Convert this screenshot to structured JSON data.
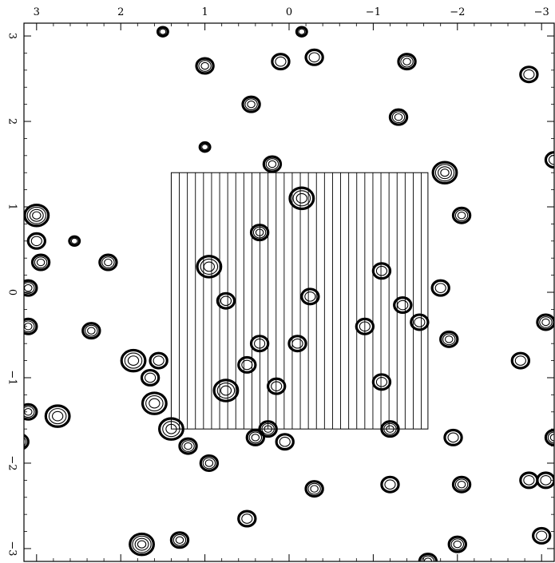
{
  "chart_data": {
    "type": "scatter",
    "title": "",
    "xlabel": "",
    "ylabel": "",
    "x_axis": {
      "reversed": true,
      "xlim": [
        3.15,
        -3.15
      ],
      "ticks": [
        3,
        2,
        1,
        0,
        -1,
        -2,
        -3
      ],
      "tick_labels": [
        "3",
        "2",
        "1",
        "0",
        "−1",
        "−2",
        "−3"
      ]
    },
    "y_axis": {
      "ylim": [
        -3.15,
        3.15
      ],
      "ticks": [
        3,
        2,
        1,
        0,
        -1,
        -2,
        -3
      ],
      "tick_labels": [
        "3",
        "2",
        "1",
        "0",
        "−1",
        "−2",
        "−3"
      ],
      "label_rotation": "90"
    },
    "grid": false,
    "legend": "none",
    "hatched_region": {
      "x": [
        1.4,
        -1.65
      ],
      "y": [
        1.4,
        -1.6
      ],
      "hatch": "vertical"
    },
    "line_color": "#000000",
    "sources": [
      [
        3.0,
        0.9,
        3,
        4
      ],
      [
        3.0,
        0.6,
        2,
        2
      ],
      [
        2.95,
        0.35,
        2,
        3
      ],
      [
        3.1,
        0.05,
        2,
        3
      ],
      [
        3.1,
        -0.4,
        2,
        3
      ],
      [
        3.1,
        -1.4,
        2,
        3
      ],
      [
        2.75,
        -1.45,
        3,
        3
      ],
      [
        3.2,
        -1.75,
        2,
        3
      ],
      [
        2.15,
        0.35,
        2,
        3
      ],
      [
        2.35,
        -0.45,
        2,
        3
      ],
      [
        1.85,
        -0.8,
        3,
        3
      ],
      [
        1.65,
        -1.0,
        2,
        2
      ],
      [
        1.6,
        -1.3,
        3,
        3
      ],
      [
        1.4,
        -1.6,
        3,
        3
      ],
      [
        1.2,
        -1.8,
        2,
        3
      ],
      [
        0.95,
        -2.0,
        2,
        3
      ],
      [
        1.55,
        -0.8,
        2,
        2
      ],
      [
        0.95,
        0.3,
        3,
        3
      ],
      [
        0.75,
        -0.1,
        2,
        2
      ],
      [
        0.75,
        -1.15,
        3,
        3
      ],
      [
        0.5,
        -0.85,
        2,
        2
      ],
      [
        0.4,
        -1.7,
        2,
        3
      ],
      [
        0.25,
        -1.6,
        2,
        3
      ],
      [
        0.05,
        -1.75,
        2,
        2
      ],
      [
        0.15,
        -1.1,
        2,
        2
      ],
      [
        0.35,
        -0.6,
        2,
        2
      ],
      [
        0.35,
        0.7,
        2,
        3
      ],
      [
        0.2,
        1.5,
        2,
        3
      ],
      [
        -0.15,
        1.1,
        3,
        3
      ],
      [
        -0.1,
        -0.6,
        2,
        2
      ],
      [
        -0.25,
        -0.05,
        2,
        2
      ],
      [
        -0.9,
        -0.4,
        2,
        2
      ],
      [
        -1.1,
        -1.05,
        2,
        2
      ],
      [
        -1.1,
        0.25,
        2,
        2
      ],
      [
        -1.35,
        -0.15,
        2,
        2
      ],
      [
        -1.55,
        -0.35,
        2,
        2
      ],
      [
        -1.2,
        -1.6,
        2,
        3
      ],
      [
        -1.85,
        1.4,
        3,
        4
      ],
      [
        -2.05,
        0.9,
        2,
        3
      ],
      [
        -1.8,
        0.05,
        2,
        2
      ],
      [
        -1.9,
        -0.55,
        2,
        3
      ],
      [
        -1.95,
        -1.7,
        2,
        2
      ],
      [
        -1.3,
        2.05,
        2,
        3
      ],
      [
        -1.4,
        2.7,
        2,
        3
      ],
      [
        -0.3,
        2.75,
        2,
        2
      ],
      [
        -2.75,
        -0.8,
        2,
        2
      ],
      [
        -3.05,
        -0.35,
        2,
        3
      ],
      [
        -3.15,
        -1.7,
        2,
        3
      ],
      [
        -3.05,
        -2.2,
        2,
        2
      ],
      [
        -2.85,
        -2.2,
        2,
        2
      ],
      [
        -2.05,
        -2.25,
        2,
        3
      ],
      [
        -1.2,
        -2.25,
        2,
        2
      ],
      [
        -0.3,
        -2.3,
        2,
        3
      ],
      [
        1.0,
        2.65,
        2,
        3
      ],
      [
        0.45,
        2.2,
        2,
        3
      ],
      [
        0.1,
        2.7,
        2,
        2
      ],
      [
        1.0,
        1.7,
        1,
        2
      ],
      [
        1.75,
        -2.95,
        3,
        4
      ],
      [
        1.3,
        -2.9,
        2,
        3
      ],
      [
        0.5,
        -2.65,
        2,
        2
      ],
      [
        -2.0,
        -2.95,
        2,
        3
      ],
      [
        -2.85,
        2.55,
        2,
        2
      ],
      [
        -3.0,
        -2.85,
        2,
        2
      ],
      [
        -1.65,
        -3.15,
        2,
        3
      ],
      [
        -3.15,
        1.55,
        2,
        2
      ],
      [
        2.55,
        0.6,
        1,
        2
      ],
      [
        1.5,
        3.05,
        1,
        2
      ],
      [
        -0.15,
        3.05,
        1,
        2
      ]
    ]
  }
}
